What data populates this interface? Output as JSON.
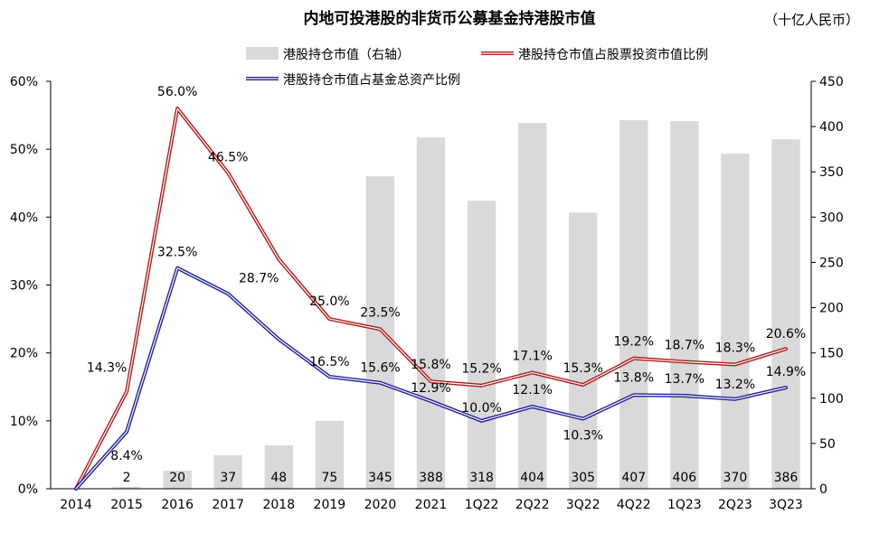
{
  "chart_data": {
    "type": "bar+line",
    "title": "内地可投港股的非货币公募基金持港股市值",
    "unit_label": "（十亿人民币）",
    "categories": [
      "2014",
      "2015",
      "2016",
      "2017",
      "2018",
      "2019",
      "2020",
      "2021",
      "1Q22",
      "2Q22",
      "3Q22",
      "4Q22",
      "1Q23",
      "2Q23",
      "3Q23"
    ],
    "bars": {
      "name": "港股持仓市值（右轴）",
      "axis": "right",
      "color": "#d9d9d9",
      "values": [
        0,
        2,
        20,
        37,
        48,
        75,
        345,
        388,
        318,
        404,
        305,
        407,
        406,
        370,
        386
      ],
      "labels": [
        "",
        "2",
        "20",
        "37",
        "48",
        "75",
        "345",
        "388",
        "318",
        "404",
        "305",
        "407",
        "406",
        "370",
        "386"
      ]
    },
    "series": [
      {
        "name": "港股持仓市值占股票投资市值比例",
        "axis": "left",
        "color": "#b01c1c",
        "values": [
          0,
          14.3,
          56.0,
          46.5,
          33.8,
          25.0,
          23.5,
          15.8,
          15.2,
          17.1,
          15.3,
          19.2,
          18.7,
          18.3,
          20.6
        ],
        "labels": [
          "",
          "14.3%",
          "56.0%",
          "46.5%",
          "",
          "25.0%",
          "23.5%",
          "15.8%",
          "15.2%",
          "17.1%",
          "15.3%",
          "19.2%",
          "18.7%",
          "18.3%",
          "20.6%"
        ]
      },
      {
        "name": "港股持仓市值占基金总资产比例",
        "axis": "left",
        "color": "#1f1f9e",
        "values": [
          0,
          8.4,
          32.5,
          28.7,
          22.0,
          16.5,
          15.6,
          12.9,
          10.0,
          12.1,
          10.3,
          13.8,
          13.7,
          13.2,
          14.9
        ],
        "labels": [
          "",
          "8.4%",
          "32.5%",
          "28.7%",
          "",
          "16.5%",
          "15.6%",
          "12.9%",
          "10.0%",
          "12.1%",
          "10.3%",
          "13.8%",
          "13.7%",
          "13.2%",
          "14.9%"
        ]
      }
    ],
    "left_axis": {
      "min": 0,
      "max": 60,
      "ticks": [
        "0%",
        "10%",
        "20%",
        "30%",
        "40%",
        "50%",
        "60%"
      ]
    },
    "right_axis": {
      "min": 0,
      "max": 450,
      "ticks": [
        "0",
        "50",
        "100",
        "150",
        "200",
        "250",
        "300",
        "350",
        "400",
        "450"
      ]
    },
    "grid": false,
    "legend_position": "top"
  }
}
